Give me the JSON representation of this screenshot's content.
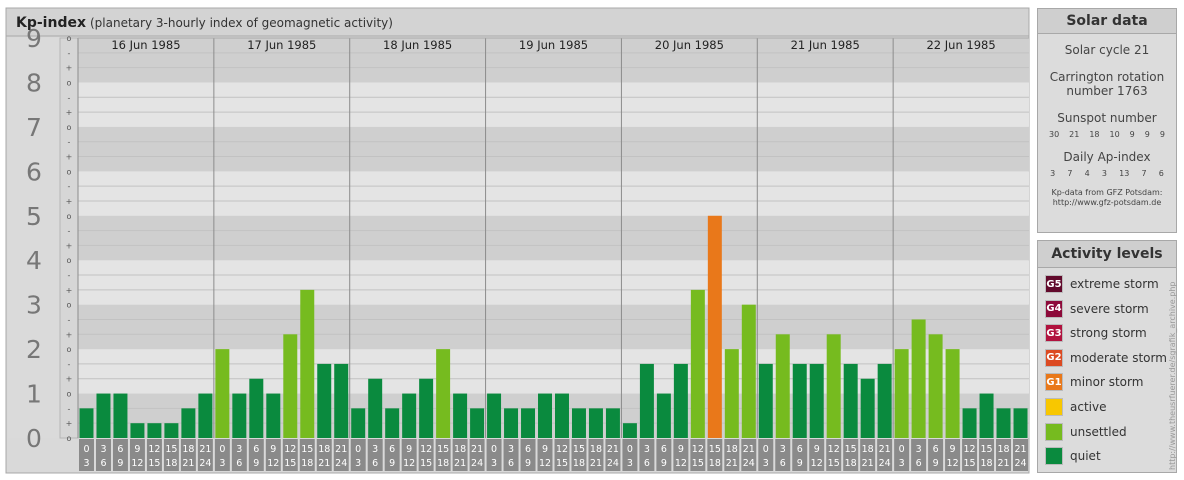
{
  "title": "Kp-index",
  "subtitle": "(planetary 3-hourly index of geomagnetic activity)",
  "chart_data": {
    "type": "bar",
    "title": "Kp-index",
    "subtitle": "(planetary 3-hourly index of geomagnetic activity)",
    "ylim": [
      0,
      9
    ],
    "yticks": [
      "0",
      "1",
      "2",
      "3",
      "4",
      "5",
      "6",
      "7",
      "8",
      "9"
    ],
    "minor_ticks": [
      "-",
      "o",
      "+"
    ],
    "days": [
      "16 Jun 1985",
      "17 Jun 1985",
      "18 Jun 1985",
      "19 Jun 1985",
      "20 Jun 1985",
      "21 Jun 1985",
      "22 Jun 1985"
    ],
    "hour_starts": [
      "0",
      "3",
      "6",
      "9",
      "12",
      "15",
      "18",
      "21"
    ],
    "hour_ends": [
      "3",
      "6",
      "9",
      "12",
      "15",
      "18",
      "21",
      "24"
    ],
    "values": [
      [
        0.667,
        1.0,
        1.0,
        0.333,
        0.333,
        0.333,
        0.667,
        1.0
      ],
      [
        2.0,
        1.0,
        1.333,
        1.0,
        2.333,
        3.333,
        1.667,
        1.667
      ],
      [
        0.667,
        1.333,
        0.667,
        1.0,
        1.333,
        2.0,
        1.0,
        0.667
      ],
      [
        1.0,
        0.667,
        0.667,
        1.0,
        1.0,
        0.667,
        0.667,
        0.667
      ],
      [
        0.333,
        1.667,
        1.0,
        1.667,
        3.333,
        5.0,
        2.0,
        3.0
      ],
      [
        1.667,
        2.333,
        1.667,
        1.667,
        2.333,
        1.667,
        1.333,
        1.667
      ],
      [
        2.0,
        2.667,
        2.333,
        2.0,
        0.667,
        1.0,
        0.667,
        0.667
      ]
    ],
    "colors": {
      "quiet": "#0a8a3e",
      "unsettled": "#76bb1f",
      "active": "#f8c700",
      "G1": "#e9781a",
      "G2": "#dc4a22",
      "G3": "#b1123e",
      "G4": "#8d0a3a",
      "G5": "#620a2c"
    },
    "grid": true
  },
  "solar": {
    "title": "Solar data",
    "cycle": "Solar cycle 21",
    "carrington_line1": "Carrington rotation",
    "carrington_line2": "number 1763",
    "sunspot_label": "Sunspot number",
    "sunspot_values": [
      "30",
      "21",
      "18",
      "10",
      "9",
      "9",
      "9"
    ],
    "ap_label": "Daily Ap-index",
    "ap_values": [
      "3",
      "7",
      "4",
      "3",
      "13",
      "7",
      "6"
    ],
    "source_line1": "Kp-data from GFZ Potsdam:",
    "source_line2": "http://www.gfz-potsdam.de"
  },
  "activity": {
    "title": "Activity levels",
    "levels": [
      {
        "code": "G5",
        "label": "extreme storm",
        "color": "#620a2c"
      },
      {
        "code": "G4",
        "label": "severe storm",
        "color": "#8d0a3a"
      },
      {
        "code": "G3",
        "label": "strong storm",
        "color": "#b1123e"
      },
      {
        "code": "G2",
        "label": "moderate storm",
        "color": "#dc4a22"
      },
      {
        "code": "G1",
        "label": "minor storm",
        "color": "#e9781a"
      },
      {
        "code": "",
        "label": "active",
        "color": "#f8c700"
      },
      {
        "code": "",
        "label": "unsettled",
        "color": "#76bb1f"
      },
      {
        "code": "",
        "label": "quiet",
        "color": "#0a8a3e"
      }
    ]
  },
  "side_note": "http://www.theusrfuerer.de/sgrafik_archive.php"
}
